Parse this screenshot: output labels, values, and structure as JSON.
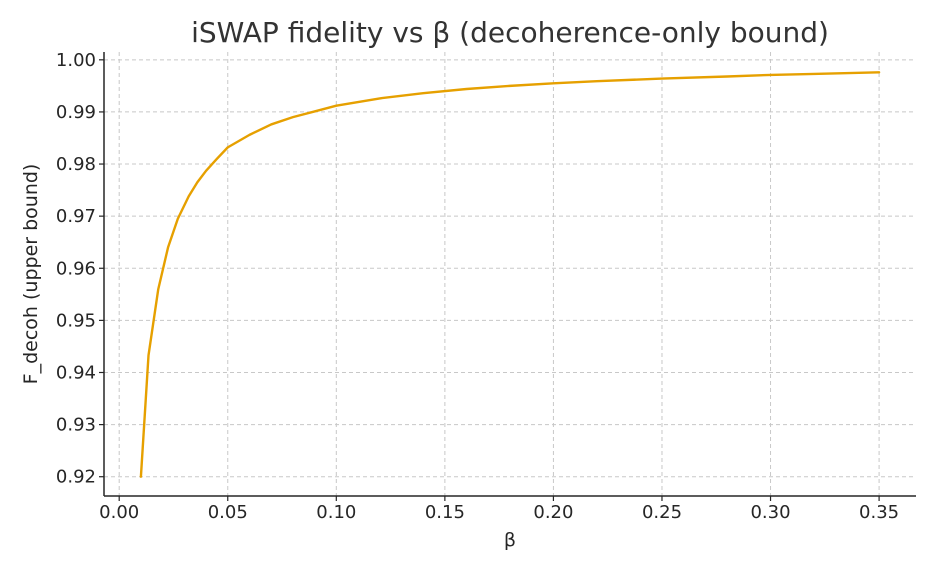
{
  "chart_data": {
    "type": "line",
    "title": "iSWAP fidelity vs β (decoherence-only bound)",
    "xlabel": "β",
    "ylabel": "F_decoh (upper bound)",
    "xlim": [
      -0.007,
      0.367
    ],
    "ylim": [
      0.9163,
      1.0015
    ],
    "x_ticks": [
      0.0,
      0.05,
      0.1,
      0.15,
      0.2,
      0.25,
      0.3,
      0.35
    ],
    "x_tick_labels": [
      "0.00",
      "0.05",
      "0.10",
      "0.15",
      "0.20",
      "0.25",
      "0.30",
      "0.35"
    ],
    "y_ticks": [
      0.92,
      0.93,
      0.94,
      0.95,
      0.96,
      0.97,
      0.98,
      0.99,
      1.0
    ],
    "y_tick_labels": [
      "0.92",
      "0.93",
      "0.94",
      "0.95",
      "0.96",
      "0.97",
      "0.98",
      "0.99",
      "1.00"
    ],
    "grid": true,
    "legend": "none",
    "series": [
      {
        "color": "#E6A000",
        "x": [
          0.01,
          0.0135,
          0.018,
          0.0225,
          0.027,
          0.032,
          0.036,
          0.04,
          0.045,
          0.05,
          0.06,
          0.07,
          0.08,
          0.09,
          0.1,
          0.12,
          0.14,
          0.16,
          0.18,
          0.2,
          0.22,
          0.25,
          0.28,
          0.3,
          0.32,
          0.35
        ],
        "y": [
          0.92,
          0.9433,
          0.956,
          0.964,
          0.9695,
          0.9738,
          0.9765,
          0.9787,
          0.981,
          0.9832,
          0.9856,
          0.9876,
          0.989,
          0.9901,
          0.9912,
          0.9926,
          0.9936,
          0.9944,
          0.995,
          0.9955,
          0.9959,
          0.9964,
          0.9968,
          0.9971,
          0.9973,
          0.9976
        ]
      }
    ]
  }
}
